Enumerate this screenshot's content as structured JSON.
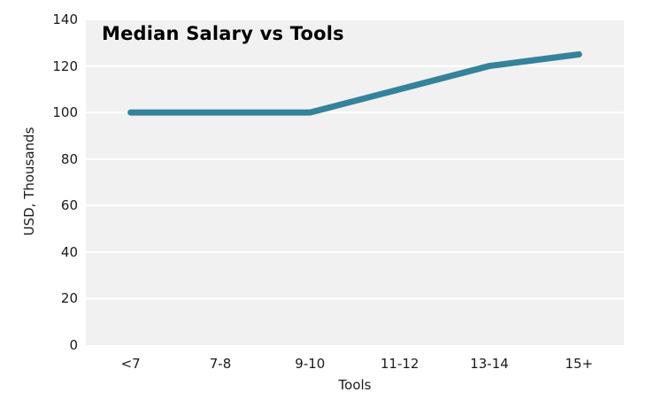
{
  "colors": {
    "line": "#34839b",
    "plot_background": "#f1f1f1",
    "gridline": "#ffffff",
    "tick_text": "#1a1a1a",
    "title_text": "#000000"
  },
  "chart_data": {
    "type": "line",
    "title": "Median Salary vs Tools",
    "xlabel": "Tools",
    "ylabel": "USD, Thousands",
    "categories": [
      "<7",
      "7-8",
      "9-10",
      "11-12",
      "13-14",
      "15+"
    ],
    "series": [
      {
        "name": "Median Salary",
        "values": [
          100,
          100,
          100,
          110,
          120,
          125
        ]
      }
    ],
    "ylim": [
      0,
      140
    ],
    "ytick_step": 20,
    "yticks": [
      0,
      20,
      40,
      60,
      80,
      100,
      120,
      140
    ],
    "grid": "horizontal white gridlines on gray plot background",
    "legend": "none",
    "line_width": 7
  }
}
